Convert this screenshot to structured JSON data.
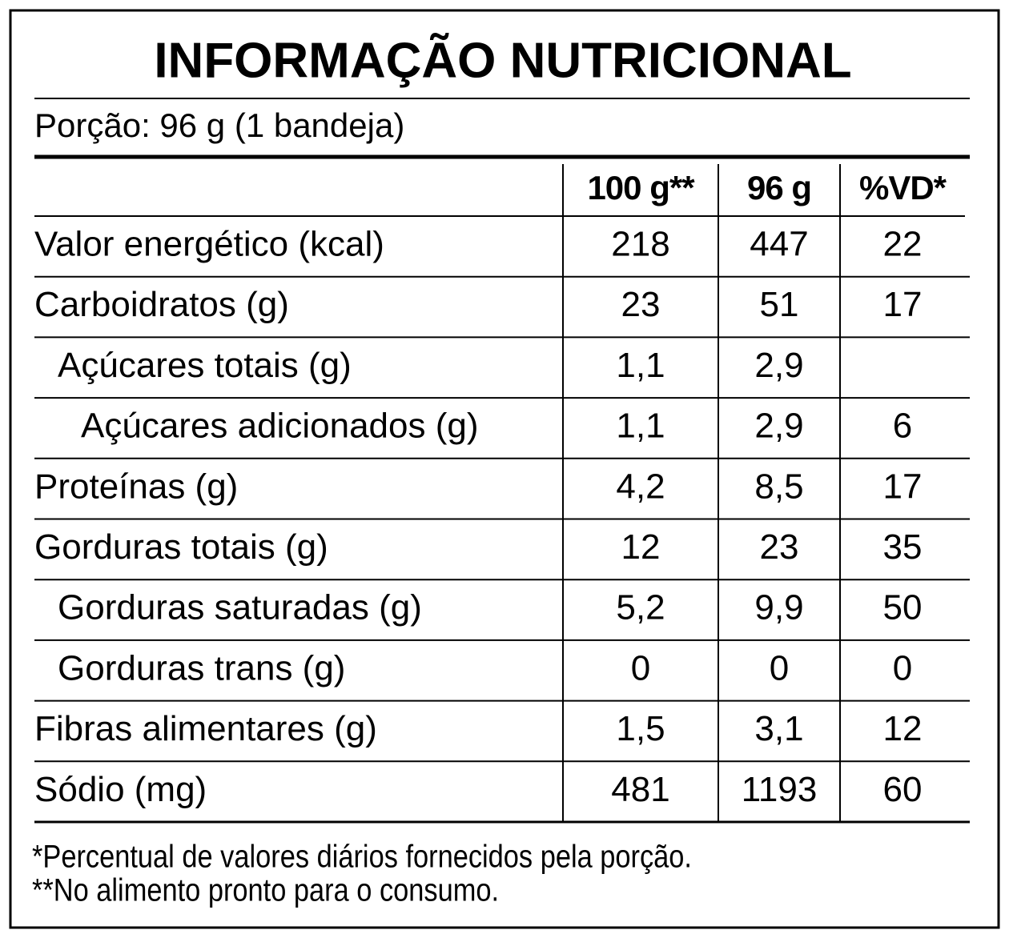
{
  "title": "INFORMAÇÃO NUTRICIONAL",
  "serving": "Porção: 96 g (1 bandeja)",
  "table": {
    "header": [
      "100 g**",
      "96 g",
      "%VD*"
    ],
    "rows": [
      {
        "label": "Valor energético (kcal)",
        "values": [
          "218",
          "447",
          "22"
        ]
      },
      {
        "label": "Carboidratos (g)",
        "values": [
          "23",
          "51",
          "17"
        ]
      },
      {
        "label": "Açúcares totais (g)",
        "values": [
          "1,1",
          "2,9",
          null
        ]
      },
      {
        "label": "Açúcares adicionados (g)",
        "values": [
          "1,1",
          "2,9",
          "6"
        ]
      },
      {
        "label": "Proteínas (g)",
        "values": [
          "4,2",
          "8,5",
          "17"
        ]
      },
      {
        "label": "Gorduras totais (g)",
        "values": [
          "12",
          "23",
          "35"
        ]
      },
      {
        "label": "Gorduras saturadas (g)",
        "values": [
          "5,2",
          "9,9",
          "50"
        ]
      },
      {
        "label": "Gorduras trans (g)",
        "values": [
          "0",
          "0",
          "0"
        ]
      },
      {
        "label": "Fibras alimentares (g)",
        "values": [
          "1,5",
          "3,1",
          "12"
        ]
      },
      {
        "label": "Sódio (mg)",
        "values": [
          "481",
          "1193",
          "60"
        ]
      }
    ]
  },
  "footnotes": [
    "*Percentual de valores diários fornecidos pela porção.",
    "**No alimento pronto para o consumo."
  ]
}
